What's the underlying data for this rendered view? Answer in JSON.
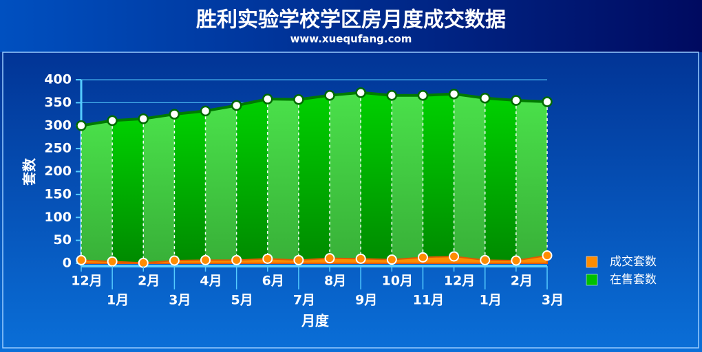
{
  "chart_data": {
    "type": "area",
    "title": "胜利实验学校学区房月度成交数据",
    "subtitle": "www.xuequfang.com",
    "x_label": "月度",
    "y_label": "套数",
    "categories": [
      "12月",
      "1月",
      "2月",
      "3月",
      "4月",
      "5月",
      "6月",
      "7月",
      "8月",
      "9月",
      "10月",
      "11月",
      "12月",
      "1月",
      "2月",
      "3月"
    ],
    "series": [
      {
        "name": "成交套数",
        "color": "#ff8c00",
        "values": [
          7,
          4,
          1,
          6,
          7,
          7,
          10,
          7,
          11,
          10,
          8,
          13,
          15,
          7,
          6,
          17
        ]
      },
      {
        "name": "在售套数",
        "color": "#00c000",
        "values": [
          300,
          311,
          315,
          325,
          332,
          344,
          358,
          357,
          366,
          372,
          366,
          366,
          369,
          360,
          355,
          352
        ]
      }
    ],
    "ylim": [
      0,
      400
    ],
    "yticks": [
      0,
      50,
      100,
      150,
      200,
      250,
      300,
      350,
      400
    ],
    "grid": true,
    "legend": "right"
  }
}
